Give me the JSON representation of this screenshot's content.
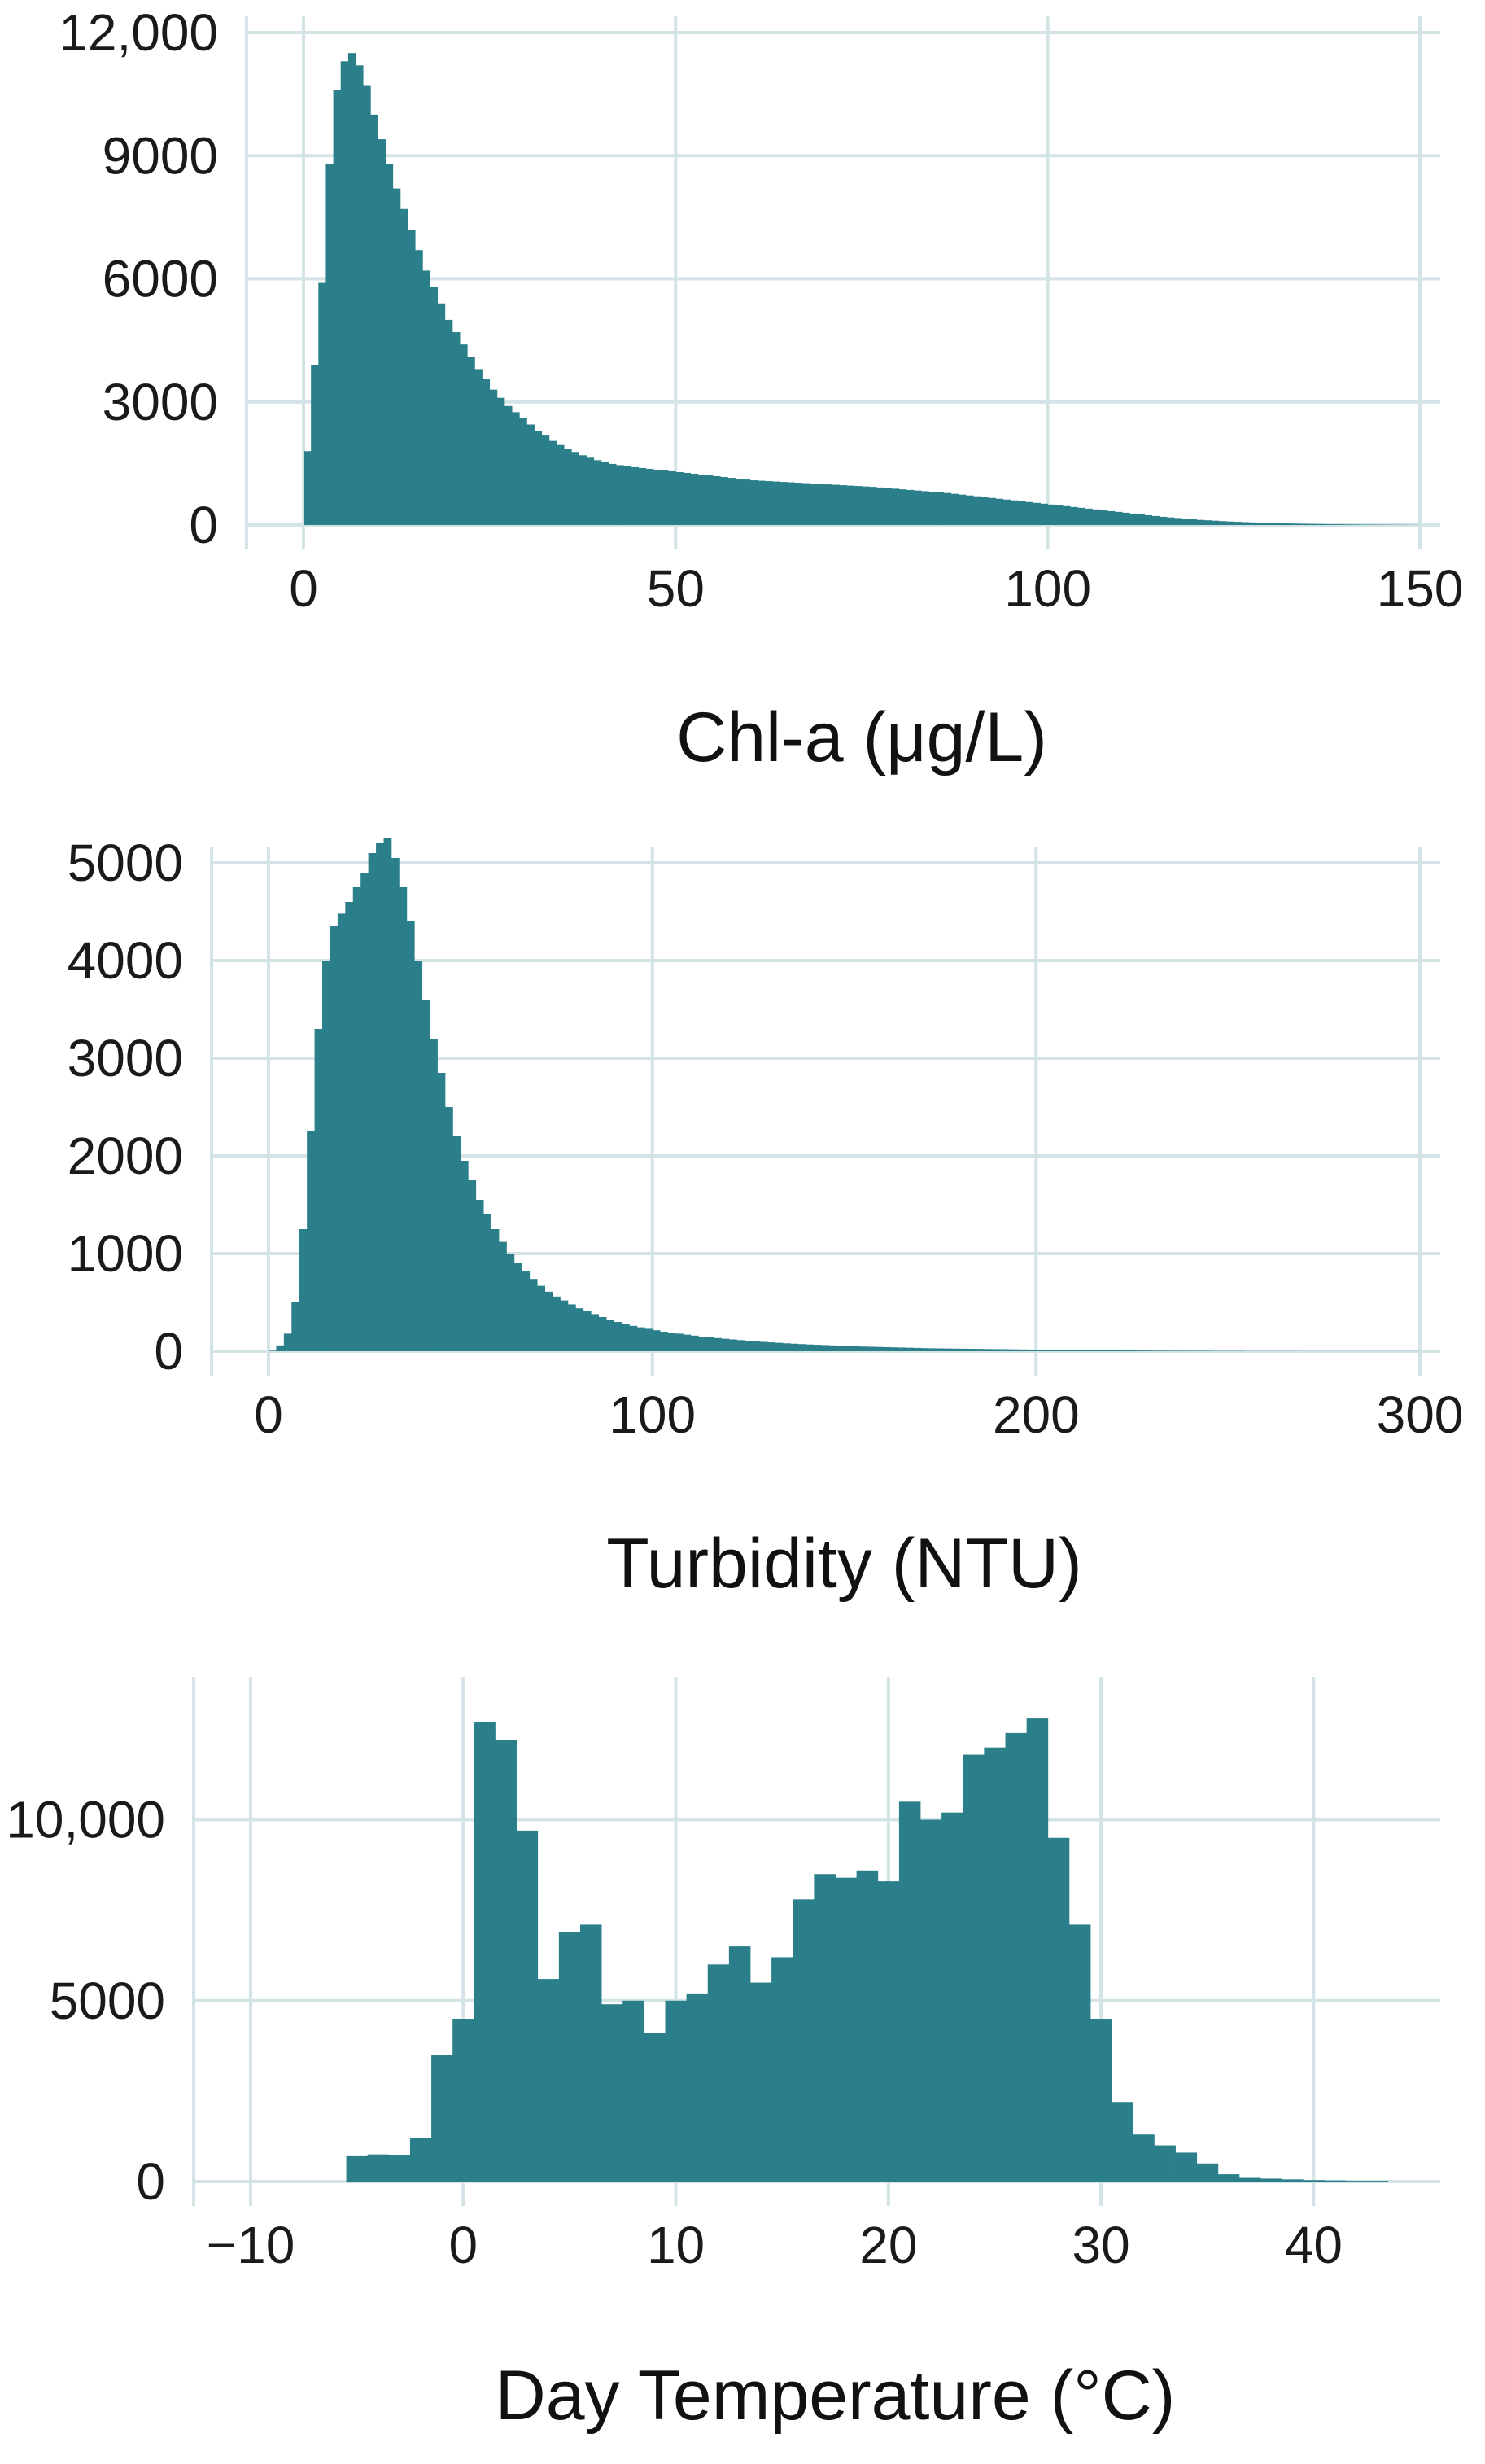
{
  "colors": {
    "bar": "#2a7f8a",
    "grid": "#d3e3e6",
    "text": "#1a1a1a",
    "background": "#ffffff"
  },
  "chart_data": [
    {
      "type": "bar",
      "histogram": true,
      "title": "",
      "xlabel": "Chl-a (μg/L)",
      "ylabel": "",
      "xlim": [
        0,
        150
      ],
      "ylim": [
        0,
        12000
      ],
      "grid": true,
      "legend": "none",
      "x_ticks": [
        0,
        50,
        100,
        150
      ],
      "x_tick_labels": [
        "0",
        "50",
        "100",
        "150"
      ],
      "y_ticks": [
        0,
        3000,
        6000,
        9000,
        12000
      ],
      "y_tick_labels": [
        "0",
        "3000",
        "6000",
        "9000",
        "12,000"
      ],
      "bin_width": 1,
      "x_start": 0,
      "values": [
        1800,
        3900,
        5900,
        8800,
        10600,
        11300,
        11500,
        11200,
        10700,
        10000,
        9400,
        8800,
        8200,
        7700,
        7200,
        6700,
        6200,
        5800,
        5400,
        5000,
        4700,
        4400,
        4100,
        3800,
        3550,
        3300,
        3100,
        2900,
        2750,
        2600,
        2450,
        2300,
        2180,
        2050,
        1950,
        1860,
        1780,
        1700,
        1640,
        1580,
        1530,
        1490,
        1460,
        1430,
        1410,
        1390,
        1370,
        1350,
        1330,
        1310,
        1290,
        1270,
        1250,
        1230,
        1210,
        1190,
        1170,
        1150,
        1130,
        1110,
        1090,
        1080,
        1070,
        1060,
        1050,
        1040,
        1030,
        1020,
        1010,
        1000,
        990,
        980,
        970,
        960,
        950,
        940,
        930,
        915,
        900,
        885,
        870,
        855,
        840,
        825,
        810,
        795,
        780,
        760,
        740,
        720,
        700,
        680,
        660,
        640,
        620,
        600,
        580,
        560,
        540,
        520,
        500,
        480,
        460,
        440,
        420,
        400,
        380,
        360,
        340,
        320,
        300,
        280,
        260,
        240,
        220,
        200,
        185,
        170,
        155,
        140,
        125,
        115,
        105,
        95,
        85,
        78,
        70,
        63,
        57,
        51,
        46,
        41,
        37,
        33,
        29,
        26,
        23,
        20,
        18,
        16,
        14,
        12,
        10,
        9,
        8,
        7,
        6,
        5,
        4,
        3
      ]
    },
    {
      "type": "bar",
      "histogram": true,
      "title": "",
      "xlabel": "Turbidity (NTU)",
      "ylabel": "",
      "xlim": [
        0,
        300
      ],
      "ylim": [
        0,
        5000
      ],
      "grid": true,
      "legend": "none",
      "x_ticks": [
        0,
        100,
        200,
        300
      ],
      "x_tick_labels": [
        "0",
        "100",
        "200",
        "300"
      ],
      "y_ticks": [
        0,
        1000,
        2000,
        3000,
        4000,
        5000
      ],
      "y_tick_labels": [
        "0",
        "1000",
        "2000",
        "3000",
        "4000",
        "5000"
      ],
      "bin_width": 2,
      "x_start": 0,
      "values": [
        5,
        60,
        180,
        500,
        1250,
        2250,
        3300,
        4000,
        4350,
        4480,
        4600,
        4750,
        4900,
        5100,
        5200,
        5250,
        5050,
        4750,
        4400,
        4000,
        3600,
        3200,
        2850,
        2500,
        2200,
        1950,
        1750,
        1550,
        1400,
        1250,
        1120,
        1000,
        900,
        820,
        740,
        670,
        610,
        560,
        520,
        480,
        440,
        410,
        380,
        350,
        320,
        300,
        280,
        260,
        245,
        230,
        215,
        200,
        190,
        180,
        170,
        160,
        150,
        142,
        135,
        128,
        121,
        114,
        108,
        102,
        96,
        91,
        86,
        81,
        77,
        73,
        69,
        66,
        63,
        60,
        57,
        54,
        51,
        48,
        46,
        44,
        42,
        40,
        38,
        36,
        34,
        32,
        30,
        29,
        28,
        27,
        26,
        25,
        24,
        23,
        22,
        21,
        20,
        19,
        18,
        17,
        16,
        15,
        14,
        13,
        12,
        11,
        11,
        10,
        10,
        9,
        9,
        8,
        8,
        7,
        7,
        6,
        6,
        5,
        5,
        5,
        4,
        4,
        4,
        3,
        3,
        3,
        3,
        2,
        2,
        2,
        2,
        2,
        2,
        2,
        1,
        1,
        1,
        1,
        1,
        1,
        1,
        1,
        1,
        1,
        1,
        1,
        1,
        1,
        1,
        1
      ]
    },
    {
      "type": "bar",
      "histogram": true,
      "title": "",
      "xlabel": "Day Temperature (°C)",
      "ylabel": "",
      "xlim": [
        -10,
        45
      ],
      "ylim": [
        0,
        13500
      ],
      "grid": true,
      "legend": "none",
      "x_ticks": [
        -10,
        0,
        10,
        20,
        30,
        40
      ],
      "x_tick_labels": [
        "−10",
        "0",
        "10",
        "20",
        "30",
        "40"
      ],
      "y_ticks": [
        0,
        5000,
        10000
      ],
      "y_tick_labels": [
        "0",
        "5000",
        "10,000"
      ],
      "bin_width": 1,
      "x_start": -5.5,
      "values": [
        700,
        750,
        720,
        1200,
        3500,
        4500,
        12700,
        12200,
        9700,
        5600,
        6900,
        7100,
        4900,
        5000,
        4100,
        5000,
        5200,
        6000,
        6500,
        5500,
        6200,
        7800,
        8500,
        8400,
        8600,
        8300,
        10500,
        10000,
        10200,
        11800,
        12000,
        12400,
        12800,
        9500,
        7100,
        4500,
        2200,
        1300,
        1000,
        800,
        500,
        200,
        100,
        80,
        60,
        40,
        30,
        20,
        20
      ]
    }
  ]
}
